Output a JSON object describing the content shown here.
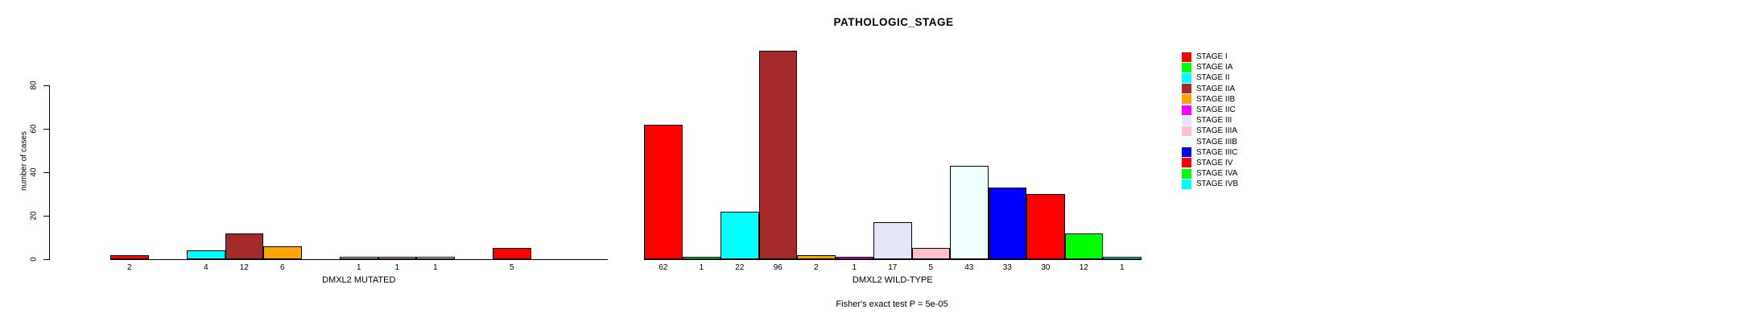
{
  "title": "PATHOLOGIC_STAGE",
  "footer": {
    "fisher_text": "Fisher's exact test P = 5e-05"
  },
  "colors": {
    "background": "#FFFFFF",
    "axis": "#000000",
    "bar_border": "#000000",
    "text": "#000000"
  },
  "chart_data": {
    "type": "bar",
    "title": "PATHOLOGIC_STAGE",
    "xlabel": "",
    "ylabel": "number of cases",
    "ylim": [
      0,
      80
    ],
    "yticks": [
      0,
      20,
      40,
      60,
      80
    ],
    "grid": false,
    "legend_position": "right",
    "bar_value_labels_shown": true,
    "categories": [
      "STAGE I",
      "STAGE IA",
      "STAGE II",
      "STAGE IIA",
      "STAGE IIB",
      "STAGE IIC",
      "STAGE III",
      "STAGE IIIA",
      "STAGE IIIB",
      "STAGE IIIC",
      "STAGE IV",
      "STAGE IVA",
      "STAGE IVB"
    ],
    "colors": [
      "#FF0000",
      "#00FF00",
      "#00FFFF",
      "#A52A2A",
      "#FFA500",
      "#FF00FF",
      "#E6E6FA",
      "#FFC0CB",
      "#F0FFFF",
      "#0000FF",
      "#FF0000",
      "#00FF00",
      "#00FFFF"
    ],
    "series": [
      {
        "name": "DMXL2 MUTATED",
        "values": [
          2,
          0,
          4,
          12,
          6,
          0,
          1,
          1,
          1,
          0,
          5,
          0,
          0
        ]
      },
      {
        "name": "DMXL2 WILD-TYPE",
        "values": [
          62,
          1,
          22,
          96,
          2,
          1,
          17,
          5,
          43,
          33,
          30,
          12,
          1
        ]
      }
    ]
  },
  "legend": {
    "entries": [
      {
        "label": "STAGE I",
        "color": "#FF0000"
      },
      {
        "label": "STAGE IA",
        "color": "#00FF00"
      },
      {
        "label": "STAGE II",
        "color": "#00FFFF"
      },
      {
        "label": "STAGE IIA",
        "color": "#A52A2A"
      },
      {
        "label": "STAGE IIB",
        "color": "#FFA500"
      },
      {
        "label": "STAGE IIC",
        "color": "#FF00FF"
      },
      {
        "label": "STAGE III",
        "color": "#E6E6FA"
      },
      {
        "label": "STAGE IIIA",
        "color": "#FFC0CB"
      },
      {
        "label": "STAGE IIIB",
        "color": "#F0FFFF"
      },
      {
        "label": "STAGE IIIC",
        "color": "#0000FF"
      },
      {
        "label": "STAGE IV",
        "color": "#FF0000"
      },
      {
        "label": "STAGE IVA",
        "color": "#00FF00"
      },
      {
        "label": "STAGE IVB",
        "color": "#00FFFF"
      }
    ]
  }
}
